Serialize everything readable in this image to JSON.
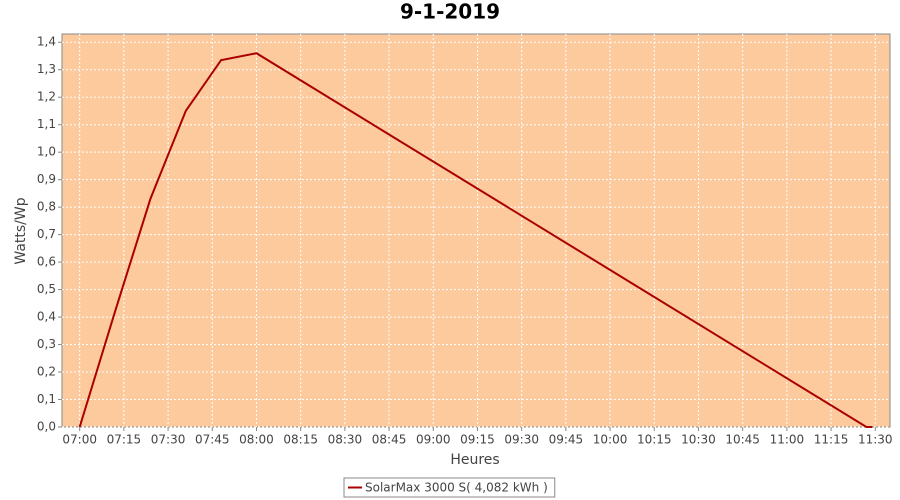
{
  "chart_data": {
    "type": "line",
    "title": "9-1-2019",
    "x_label": "Heures",
    "y_label": "Watts/Wp",
    "x": [
      "07:00",
      "07:12",
      "07:24",
      "07:36",
      "07:48",
      "08:00",
      "11:27",
      "11:29"
    ],
    "series": [
      {
        "name": "SolarMax 3000 S( 4,082 kWh )",
        "color": "#aa0000",
        "values": [
          0.0,
          0.42,
          0.83,
          1.15,
          1.335,
          1.36,
          0.0,
          0.0
        ]
      }
    ],
    "xlim": [
      "06:54",
      "11:35"
    ],
    "xticks": [
      "07:00",
      "07:15",
      "07:30",
      "07:45",
      "08:00",
      "08:15",
      "08:30",
      "08:45",
      "09:00",
      "09:15",
      "09:30",
      "09:45",
      "10:00",
      "10:15",
      "10:30",
      "10:45",
      "11:00",
      "11:15",
      "11:30"
    ],
    "ylim": [
      0,
      1.43
    ],
    "yticks": [
      {
        "value": 0,
        "label": "0,0"
      },
      {
        "value": 0.1,
        "label": "0,1"
      },
      {
        "value": 0.2,
        "label": "0,2"
      },
      {
        "value": 0.3,
        "label": "0,3"
      },
      {
        "value": 0.4,
        "label": "0,4"
      },
      {
        "value": 0.5,
        "label": "0,5"
      },
      {
        "value": 0.6,
        "label": "0,6"
      },
      {
        "value": 0.7,
        "label": "0,7"
      },
      {
        "value": 0.8,
        "label": "0,8"
      },
      {
        "value": 0.9,
        "label": "0,9"
      },
      {
        "value": 1.0,
        "label": "1,0"
      },
      {
        "value": 1.1,
        "label": "1,1"
      },
      {
        "value": 1.2,
        "label": "1,2"
      },
      {
        "value": 1.3,
        "label": "1,3"
      },
      {
        "value": 1.4,
        "label": "1,4"
      }
    ],
    "grid": true,
    "plot_background": "#fdca9e",
    "legend_position": "bottom"
  }
}
